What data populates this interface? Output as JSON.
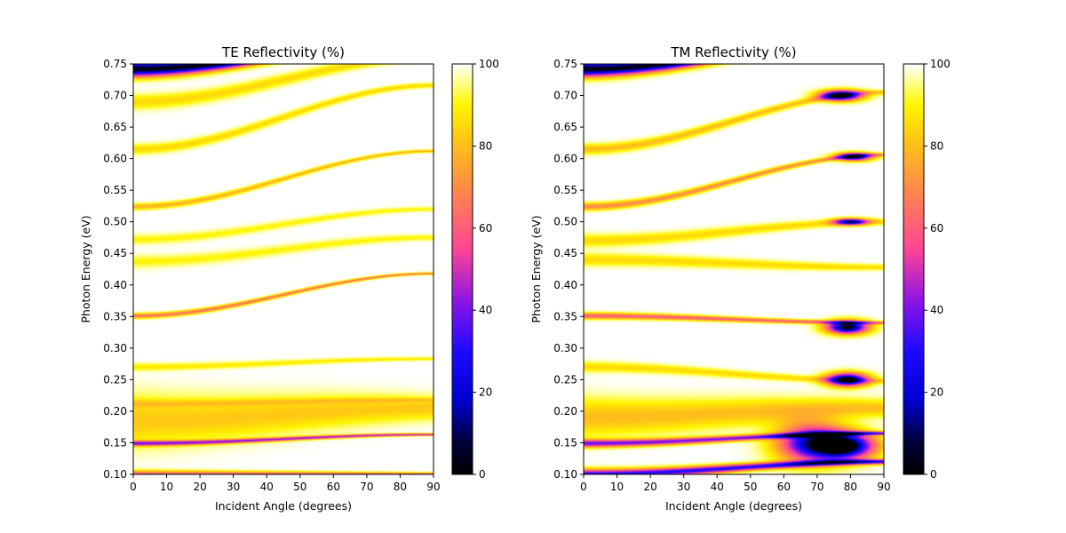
{
  "chart_data": [
    {
      "type": "heatmap",
      "title": "TE Reflectivity (%)",
      "xlabel": "Incident Angle (degrees)",
      "ylabel": "Photon Energy (eV)",
      "xlim": [
        0,
        90
      ],
      "ylim": [
        0.1,
        0.75
      ],
      "xticks": [
        "0",
        "10",
        "20",
        "30",
        "40",
        "50",
        "60",
        "70",
        "80",
        "90"
      ],
      "yticks": [
        "0.10",
        "0.15",
        "0.20",
        "0.25",
        "0.30",
        "0.35",
        "0.40",
        "0.45",
        "0.50",
        "0.55",
        "0.60",
        "0.65",
        "0.70",
        "0.75"
      ],
      "colormap": "gnuplot2",
      "colorbar": {
        "range": [
          0,
          100
        ],
        "ticks": [
          "0",
          "20",
          "40",
          "60",
          "80",
          "100"
        ]
      },
      "dips": [
        {
          "e0": 0.1,
          "e90": 0.1,
          "min": 60,
          "w": 0.006
        },
        {
          "e0": 0.149,
          "e90": 0.163,
          "min": 45,
          "w": 0.004
        },
        {
          "e0": 0.185,
          "e90": 0.205,
          "min": 82,
          "w": 0.04
        },
        {
          "e0": 0.212,
          "e90": 0.218,
          "min": 90,
          "w": 0.006
        },
        {
          "e0": 0.27,
          "e90": 0.283,
          "min": 88,
          "w": 0.006
        },
        {
          "e0": 0.351,
          "e90": 0.418,
          "min": 65,
          "w": 0.004
        },
        {
          "e0": 0.437,
          "e90": 0.475,
          "min": 90,
          "w": 0.01
        },
        {
          "e0": 0.472,
          "e90": 0.52,
          "min": 90,
          "w": 0.008
        },
        {
          "e0": 0.524,
          "e90": 0.612,
          "min": 78,
          "w": 0.005
        },
        {
          "e0": 0.615,
          "e90": 0.716,
          "min": 85,
          "w": 0.008
        },
        {
          "e0": 0.69,
          "e90": 0.76,
          "min": 85,
          "w": 0.012
        },
        {
          "e0": 0.742,
          "e90": 0.79,
          "min": 2,
          "w": 0.012
        }
      ]
    },
    {
      "type": "heatmap",
      "title": "TM Reflectivity (%)",
      "xlabel": "Incident Angle (degrees)",
      "ylabel": "Photon Energy (eV)",
      "xlim": [
        0,
        90
      ],
      "ylim": [
        0.1,
        0.75
      ],
      "xticks": [
        "0",
        "10",
        "20",
        "30",
        "40",
        "50",
        "60",
        "70",
        "80",
        "90"
      ],
      "yticks": [
        "0.10",
        "0.15",
        "0.20",
        "0.25",
        "0.30",
        "0.35",
        "0.40",
        "0.45",
        "0.50",
        "0.55",
        "0.60",
        "0.65",
        "0.70",
        "0.75"
      ],
      "colormap": "gnuplot2",
      "colorbar": {
        "range": [
          0,
          100
        ],
        "ticks": [
          "0",
          "20",
          "40",
          "60",
          "80",
          "100"
        ]
      },
      "dips": [
        {
          "e0": 0.1,
          "e90": 0.12,
          "min": 30,
          "w": 0.008
        },
        {
          "e0": 0.149,
          "e90": 0.165,
          "min": 40,
          "w": 0.006
        },
        {
          "e0": 0.19,
          "e90": 0.205,
          "min": 80,
          "w": 0.03
        },
        {
          "e0": 0.27,
          "e90": 0.248,
          "min": 85,
          "w": 0.008
        },
        {
          "e0": 0.351,
          "e90": 0.34,
          "min": 60,
          "w": 0.005
        },
        {
          "e0": 0.44,
          "e90": 0.428,
          "min": 85,
          "w": 0.01
        },
        {
          "e0": 0.47,
          "e90": 0.5,
          "min": 85,
          "w": 0.01
        },
        {
          "e0": 0.524,
          "e90": 0.606,
          "min": 70,
          "w": 0.006
        },
        {
          "e0": 0.615,
          "e90": 0.705,
          "min": 80,
          "w": 0.008
        },
        {
          "e0": 0.742,
          "e90": 0.79,
          "min": 2,
          "w": 0.012
        }
      ],
      "pockets": [
        {
          "a": 78,
          "e": 0.145,
          "depth": 100,
          "wa": 9,
          "we": 0.02
        },
        {
          "a": 68,
          "e": 0.15,
          "depth": 70,
          "wa": 10,
          "we": 0.03
        },
        {
          "a": 79,
          "e": 0.25,
          "depth": 100,
          "wa": 6,
          "we": 0.01
        },
        {
          "a": 79,
          "e": 0.333,
          "depth": 100,
          "wa": 6,
          "we": 0.01
        },
        {
          "a": 80,
          "e": 0.5,
          "depth": 80,
          "wa": 5,
          "we": 0.005
        },
        {
          "a": 81,
          "e": 0.603,
          "depth": 90,
          "wa": 5,
          "we": 0.006
        },
        {
          "a": 77,
          "e": 0.7,
          "depth": 100,
          "wa": 6,
          "we": 0.008
        }
      ]
    }
  ]
}
